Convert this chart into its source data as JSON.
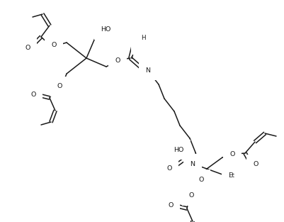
{
  "bg": "#ffffff",
  "lc": "#1a1a1a",
  "lw": 1.1,
  "fs": 6.8,
  "figsize": [
    4.01,
    3.13
  ],
  "dpi": 100,
  "Q1": [
    122,
    82
  ],
  "Q2": [
    292,
    238
  ]
}
